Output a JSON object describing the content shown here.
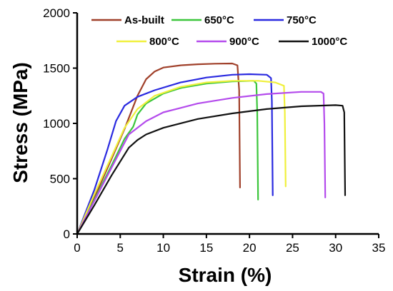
{
  "chart_data": {
    "type": "line",
    "xlabel": "Strain (%)",
    "ylabel": "Stress (MPa)",
    "xlim": [
      0,
      35
    ],
    "ylim": [
      0,
      2000
    ],
    "xticks": [
      0,
      5,
      10,
      15,
      20,
      25,
      30,
      35
    ],
    "yticks": [
      0,
      500,
      1000,
      1500,
      2000
    ],
    "xtick_labels": [
      "0",
      "5",
      "10",
      "15",
      "20",
      "25",
      "30",
      "35"
    ],
    "ytick_labels": [
      "0",
      "500",
      "1000",
      "1500",
      "2000"
    ],
    "grid": false,
    "legend_position": "top",
    "series": [
      {
        "name": "As-built",
        "color": "#a0402a",
        "points": [
          [
            0,
            0
          ],
          [
            2,
            330
          ],
          [
            4,
            680
          ],
          [
            5.5,
            950
          ],
          [
            7,
            1250
          ],
          [
            8,
            1400
          ],
          [
            9,
            1470
          ],
          [
            10,
            1505
          ],
          [
            12,
            1525
          ],
          [
            14,
            1535
          ],
          [
            16,
            1540
          ],
          [
            18,
            1542
          ],
          [
            18.6,
            1525
          ],
          [
            18.8,
            1300
          ],
          [
            18.9,
            420
          ]
        ]
      },
      {
        "name": "650°C",
        "color": "#3cc63c",
        "points": [
          [
            0,
            0
          ],
          [
            2,
            310
          ],
          [
            4,
            620
          ],
          [
            5.5,
            860
          ],
          [
            6.5,
            970
          ],
          [
            7,
            1080
          ],
          [
            8,
            1180
          ],
          [
            10,
            1270
          ],
          [
            12,
            1320
          ],
          [
            15,
            1360
          ],
          [
            18,
            1380
          ],
          [
            20.5,
            1385
          ],
          [
            20.8,
            1360
          ],
          [
            20.9,
            1100
          ],
          [
            21,
            310
          ]
        ]
      },
      {
        "name": "750°C",
        "color": "#2a2ae0",
        "points": [
          [
            0,
            0
          ],
          [
            2,
            400
          ],
          [
            3.5,
            760
          ],
          [
            4.5,
            1020
          ],
          [
            5.5,
            1160
          ],
          [
            7,
            1240
          ],
          [
            9,
            1300
          ],
          [
            12,
            1370
          ],
          [
            15,
            1415
          ],
          [
            18,
            1440
          ],
          [
            20,
            1445
          ],
          [
            22,
            1440
          ],
          [
            22.5,
            1410
          ],
          [
            22.6,
            1200
          ],
          [
            22.7,
            350
          ]
        ]
      },
      {
        "name": "800°C",
        "color": "#f0f03c",
        "points": [
          [
            0,
            0
          ],
          [
            2,
            360
          ],
          [
            4,
            700
          ],
          [
            5.5,
            960
          ],
          [
            7,
            1130
          ],
          [
            9,
            1250
          ],
          [
            12,
            1330
          ],
          [
            15,
            1370
          ],
          [
            18,
            1385
          ],
          [
            21,
            1385
          ],
          [
            23,
            1370
          ],
          [
            24,
            1340
          ],
          [
            24.1,
            1100
          ],
          [
            24.2,
            430
          ]
        ]
      },
      {
        "name": "900°C",
        "color": "#b44bec",
        "points": [
          [
            0,
            0
          ],
          [
            2,
            300
          ],
          [
            4,
            600
          ],
          [
            6,
            900
          ],
          [
            8,
            1020
          ],
          [
            10,
            1100
          ],
          [
            14,
            1180
          ],
          [
            18,
            1230
          ],
          [
            22,
            1265
          ],
          [
            26,
            1285
          ],
          [
            28.3,
            1285
          ],
          [
            28.6,
            1270
          ],
          [
            28.7,
            1000
          ],
          [
            28.8,
            330
          ]
        ]
      },
      {
        "name": "1000°C",
        "color": "#111111",
        "points": [
          [
            0,
            0
          ],
          [
            2,
            260
          ],
          [
            4,
            530
          ],
          [
            6,
            780
          ],
          [
            7,
            850
          ],
          [
            8,
            900
          ],
          [
            10,
            960
          ],
          [
            14,
            1040
          ],
          [
            18,
            1090
          ],
          [
            22,
            1130
          ],
          [
            26,
            1155
          ],
          [
            30,
            1165
          ],
          [
            30.8,
            1160
          ],
          [
            31,
            1100
          ],
          [
            31.1,
            350
          ]
        ]
      }
    ]
  }
}
